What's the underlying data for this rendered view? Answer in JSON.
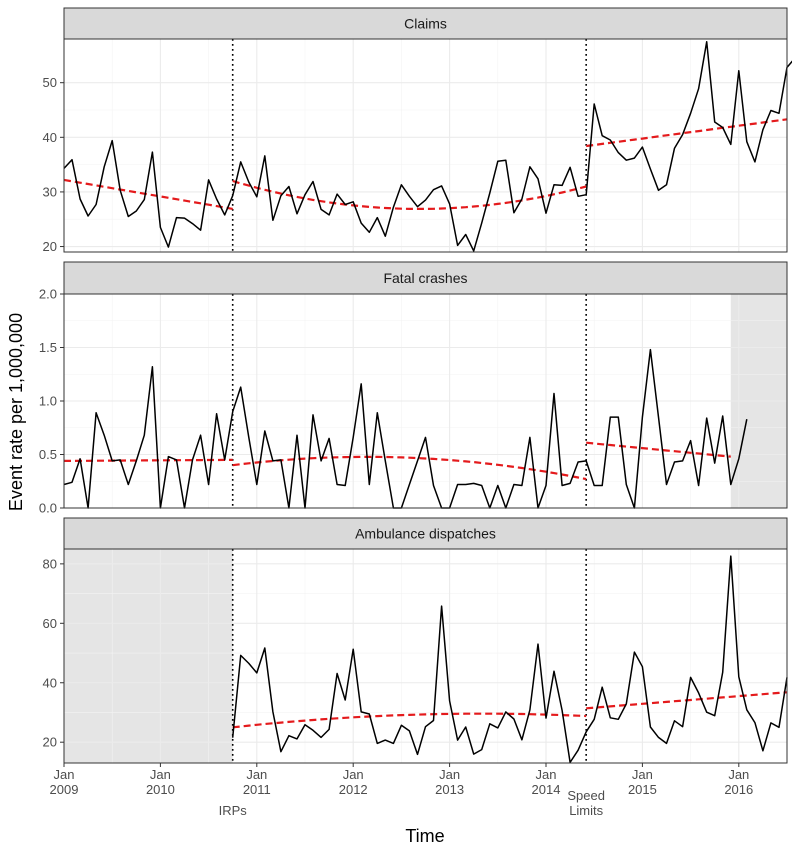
{
  "chart_data": {
    "type": "line",
    "xlabel": "Time",
    "ylabel": "Event rate per 1,000,000",
    "x_ticks": [
      {
        "year": 2009,
        "label": [
          "Jan",
          "2009"
        ]
      },
      {
        "year": 2010,
        "label": [
          "Jan",
          "2010"
        ]
      },
      {
        "year": 2011,
        "label": [
          "Jan",
          "2011"
        ]
      },
      {
        "year": 2012,
        "label": [
          "Jan",
          "2012"
        ]
      },
      {
        "year": 2013,
        "label": [
          "Jan",
          "2013"
        ]
      },
      {
        "year": 2014,
        "label": [
          "Jan",
          "2014"
        ]
      },
      {
        "year": 2015,
        "label": [
          "Jan",
          "2015"
        ]
      },
      {
        "year": 2016,
        "label": [
          "Jan",
          "2016"
        ]
      }
    ],
    "xlim": [
      "2009-01",
      "2016-07"
    ],
    "interventions": [
      {
        "date": "2010-10",
        "label": [
          "IRPs"
        ]
      },
      {
        "date": "2014-06",
        "label": [
          "Speed",
          "Limits"
        ]
      }
    ],
    "colors": {
      "observed": "#000000",
      "trend": "#e41a1c",
      "strip": "#d9d9d9",
      "shade": "#e5e5e5",
      "grid": "#ebebeb"
    },
    "panels": [
      {
        "title": "Claims",
        "ylim": [
          19,
          58
        ],
        "yticks": [
          20,
          30,
          40,
          50
        ],
        "shade": [],
        "series_start": "2009-01",
        "observed": [
          34.3,
          35.9,
          28.7,
          25.6,
          27.7,
          34.6,
          39.4,
          30.3,
          25.5,
          26.5,
          28.6,
          37.3,
          23.5,
          19.9,
          25.3,
          25.2,
          24.2,
          23.0,
          32.2,
          28.7,
          25.8,
          29.3,
          35.5,
          31.8,
          29.1,
          36.6,
          24.8,
          29.3,
          31.0,
          26.0,
          29.5,
          31.9,
          26.8,
          25.8,
          29.6,
          27.7,
          28.2,
          24.3,
          22.6,
          25.3,
          21.9,
          27.2,
          31.3,
          29.2,
          27.3,
          28.5,
          30.4,
          31.1,
          27.8,
          20.2,
          22.2,
          19.2,
          24.3,
          29.8,
          35.6,
          35.8,
          26.2,
          28.7,
          34.6,
          32.4,
          26.1,
          31.3,
          31.2,
          34.5,
          29.2,
          29.5,
          46.1,
          40.3,
          39.5,
          37.2,
          35.8,
          36.2,
          38.2,
          34.2,
          30.3,
          31.3,
          38.0,
          40.5,
          44.4,
          48.9,
          57.5,
          42.8,
          41.8,
          38.7,
          52.2,
          39.2,
          35.5,
          41.4,
          44.9,
          44.4,
          52.8,
          54.5
        ],
        "trend": [
          {
            "start": "2009-01",
            "end": "2010-10",
            "from": 32.2,
            "to": 26.9,
            "shape": "linear"
          },
          {
            "start": "2010-10",
            "end": "2014-06",
            "from": 32.0,
            "to": 31.0,
            "min": 26.9,
            "shape": "dip"
          },
          {
            "start": "2014-06",
            "end": "2016-07",
            "from": 38.4,
            "to": 43.3,
            "shape": "linear"
          }
        ]
      },
      {
        "title": "Fatal crashes",
        "ylim": [
          0,
          2.0
        ],
        "yticks": [
          0.0,
          0.5,
          1.0,
          1.5,
          2.0
        ],
        "ytick_labels": [
          "0.0",
          "0.5",
          "1.0",
          "1.5",
          "2.0"
        ],
        "shade": [
          {
            "start": "2015-12",
            "end": "2016-07"
          }
        ],
        "series_start": "2009-01",
        "observed": [
          0.22,
          0.24,
          0.46,
          0.0,
          0.89,
          0.68,
          0.44,
          0.45,
          0.22,
          0.44,
          0.68,
          1.32,
          0.0,
          0.48,
          0.45,
          0.0,
          0.45,
          0.68,
          0.22,
          0.88,
          0.45,
          0.9,
          1.13,
          0.66,
          0.22,
          0.72,
          0.44,
          0.45,
          0.0,
          0.68,
          0.0,
          0.87,
          0.44,
          0.65,
          0.22,
          0.21,
          0.66,
          1.16,
          0.22,
          0.89,
          0.44,
          0.0,
          0.0,
          0.22,
          0.44,
          0.66,
          0.21,
          0.0,
          0.0,
          0.22,
          0.22,
          0.23,
          0.21,
          0.0,
          0.21,
          0.0,
          0.22,
          0.21,
          0.66,
          0.0,
          0.21,
          1.07,
          0.21,
          0.23,
          0.43,
          0.44,
          0.21,
          0.21,
          0.85,
          0.85,
          0.22,
          0.0,
          0.85,
          1.48,
          0.85,
          0.22,
          0.43,
          0.44,
          0.63,
          0.21,
          0.84,
          0.42,
          0.86,
          0.22,
          0.46,
          0.83
        ],
        "trend": [
          {
            "start": "2009-01",
            "end": "2010-10",
            "from": 0.44,
            "to": 0.45,
            "shape": "linear"
          },
          {
            "start": "2010-10",
            "end": "2014-06",
            "from": 0.4,
            "to": 0.27,
            "mid": 0.47,
            "shape": "bump"
          },
          {
            "start": "2014-06",
            "end": "2015-12",
            "from": 0.61,
            "to": 0.48,
            "shape": "linear"
          }
        ]
      },
      {
        "title": "Ambulance dispatches",
        "ylim": [
          13,
          85
        ],
        "yticks": [
          20,
          40,
          60,
          80
        ],
        "shade": [
          {
            "start": "2009-01",
            "end": "2010-10"
          }
        ],
        "series_start": "2010-10",
        "observed": [
          21.5,
          49.2,
          46.5,
          43.3,
          51.7,
          30.2,
          16.8,
          22.2,
          21.1,
          25.9,
          24.0,
          21.6,
          24.3,
          43.1,
          34.2,
          51.3,
          30.2,
          29.5,
          19.6,
          20.7,
          19.6,
          25.7,
          23.8,
          15.9,
          25.2,
          27.3,
          65.8,
          33.9,
          20.7,
          25.1,
          16.0,
          17.5,
          26.2,
          24.8,
          30.2,
          27.8,
          20.8,
          30.9,
          53.0,
          28.1,
          43.9,
          30.7,
          13.2,
          17.3,
          23.5,
          27.7,
          38.5,
          28.2,
          27.7,
          32.9,
          50.3,
          45.4,
          25.1,
          21.6,
          19.6,
          27.2,
          25.2,
          41.8,
          36.6,
          30.1,
          28.9,
          43.5,
          82.6,
          42.0,
          30.9,
          26.6,
          17.1,
          26.5,
          25.0,
          41.8
        ],
        "trend": [
          {
            "start": "2010-10",
            "end": "2014-06",
            "from": 25.0,
            "to": 28.8,
            "mid": 29.2,
            "shape": "bump"
          },
          {
            "start": "2014-06",
            "end": "2016-07",
            "from": 31.4,
            "to": 36.8,
            "shape": "linear"
          }
        ]
      }
    ]
  }
}
